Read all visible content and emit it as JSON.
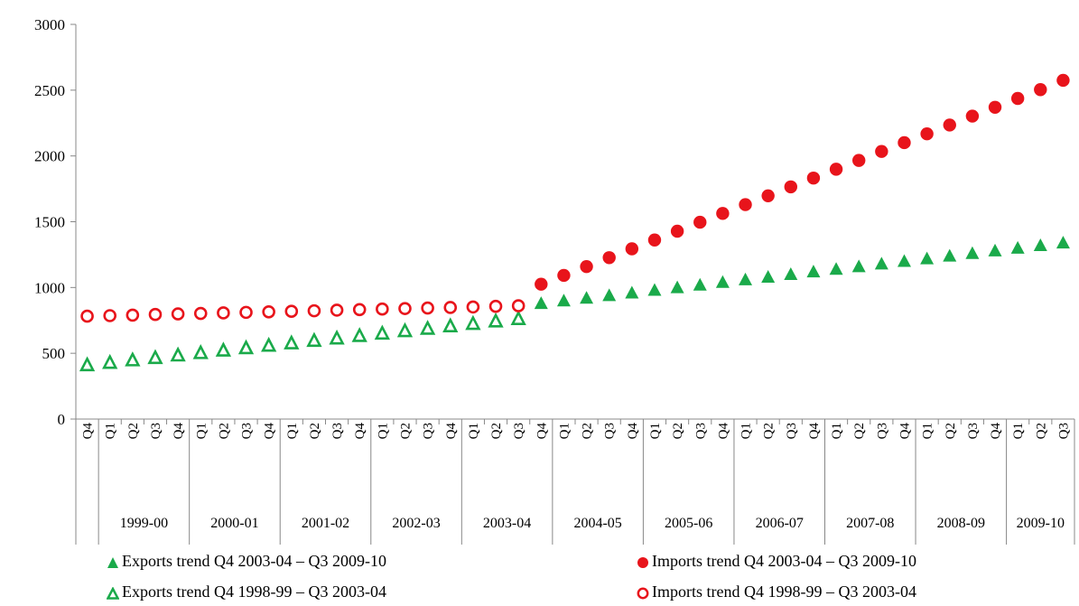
{
  "chart_data": {
    "type": "scatter",
    "y_axis": {
      "min": 0,
      "max": 3000,
      "step": 500,
      "ticks": [
        "0",
        "500",
        "1000",
        "1500",
        "2000",
        "2500",
        "3000"
      ]
    },
    "quarters": [
      "Q4",
      "Q1",
      "Q2",
      "Q3",
      "Q4",
      "Q1",
      "Q2",
      "Q3",
      "Q4",
      "Q1",
      "Q2",
      "Q3",
      "Q4",
      "Q1",
      "Q2",
      "Q3",
      "Q4",
      "Q1",
      "Q2",
      "Q3",
      "Q4",
      "Q1",
      "Q2",
      "Q3",
      "Q4",
      "Q1",
      "Q2",
      "Q3",
      "Q4",
      "Q1",
      "Q2",
      "Q3",
      "Q4",
      "Q1",
      "Q2",
      "Q3",
      "Q4",
      "Q1",
      "Q2",
      "Q3",
      "Q4",
      "Q1",
      "Q2",
      "Q3"
    ],
    "years": [
      {
        "label": "",
        "start": 0,
        "count": 1
      },
      {
        "label": "1999-00",
        "start": 1,
        "count": 4
      },
      {
        "label": "2000-01",
        "start": 5,
        "count": 4
      },
      {
        "label": "2001-02",
        "start": 9,
        "count": 4
      },
      {
        "label": "2002-03",
        "start": 13,
        "count": 4
      },
      {
        "label": "2003-04",
        "start": 17,
        "count": 4
      },
      {
        "label": "2004-05",
        "start": 21,
        "count": 4
      },
      {
        "label": "2005-06",
        "start": 25,
        "count": 4
      },
      {
        "label": "2006-07",
        "start": 29,
        "count": 4
      },
      {
        "label": "2007-08",
        "start": 33,
        "count": 4
      },
      {
        "label": "2008-09",
        "start": 37,
        "count": 4
      },
      {
        "label": "2009-10",
        "start": 41,
        "count": 3
      }
    ],
    "series": [
      {
        "name": "Exports trend Q4 2003-04 – Q3 2009-10",
        "marker": "triangle-filled",
        "color": "#1aaa4a",
        "start_index": 20,
        "values": [
          878,
          898,
          918,
          938,
          958,
          978,
          998,
          1018,
          1038,
          1058,
          1078,
          1098,
          1118,
          1138,
          1158,
          1178,
          1198,
          1218,
          1238,
          1258,
          1278,
          1298,
          1318,
          1338
        ]
      },
      {
        "name": "Imports trend Q4 2003-04 – Q3 2009-10",
        "marker": "circle-filled",
        "color": "#e8141b",
        "start_index": 20,
        "values": [
          1025,
          1092,
          1159,
          1227,
          1294,
          1361,
          1428,
          1496,
          1563,
          1630,
          1697,
          1765,
          1832,
          1899,
          1966,
          2034,
          2101,
          2168,
          2235,
          2303,
          2370,
          2437,
          2504,
          2575
        ]
      },
      {
        "name": "Exports trend Q4 1998-99 – Q3 2003-04",
        "marker": "triangle-open",
        "color": "#1aaa4a",
        "start_index": 0,
        "values": [
          410,
          428,
          447,
          465,
          484,
          502,
          521,
          539,
          558,
          576,
          595,
          613,
          632,
          650,
          669,
          687,
          706,
          724,
          743,
          761
        ]
      },
      {
        "name": "Imports trend Q4 1998-99 – Q3 2003-04",
        "marker": "circle-open",
        "color": "#e8141b",
        "start_index": 0,
        "values": [
          782,
          786,
          790,
          795,
          799,
          803,
          807,
          811,
          815,
          819,
          823,
          828,
          832,
          836,
          840,
          844,
          848,
          852,
          857,
          861
        ]
      }
    ]
  }
}
